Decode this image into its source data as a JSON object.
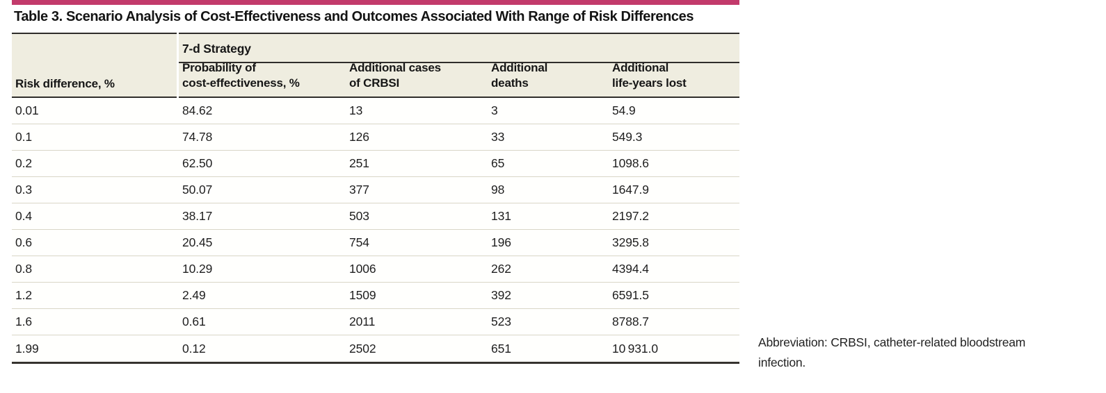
{
  "accent_color": "#c23a6b",
  "title": "Table 3. Scenario Analysis of Cost-Effectiveness and Outcomes Associated With Range of Risk Differences",
  "table": {
    "stub_header": "Risk difference, %",
    "group_header": "7-d Strategy",
    "sub_headers": [
      "Probability of\ncost-effectiveness, %",
      "Additional cases\nof CRBSI",
      "Additional\ndeaths",
      "Additional\nlife-years lost"
    ],
    "columns": [
      "Risk difference, %",
      "Probability of cost-effectiveness, %",
      "Additional cases of CRBSI",
      "Additional deaths",
      "Additional life-years lost"
    ],
    "rows": [
      [
        "0.01",
        "84.62",
        "13",
        "3",
        "54.9"
      ],
      [
        "0.1",
        "74.78",
        "126",
        "33",
        "549.3"
      ],
      [
        "0.2",
        "62.50",
        "251",
        "65",
        "1098.6"
      ],
      [
        "0.3",
        "50.07",
        "377",
        "98",
        "1647.9"
      ],
      [
        "0.4",
        "38.17",
        "503",
        "131",
        "2197.2"
      ],
      [
        "0.6",
        "20.45",
        "754",
        "196",
        "3295.8"
      ],
      [
        "0.8",
        "10.29",
        "1006",
        "262",
        "4394.4"
      ],
      [
        "1.2",
        "2.49",
        "1509",
        "392",
        "6591.5"
      ],
      [
        "1.6",
        "0.61",
        "2011",
        "523",
        "8788.7"
      ],
      [
        "1.99",
        "0.12",
        "2502",
        "651",
        "10 931.0"
      ]
    ]
  },
  "note": "Abbreviation: CRBSI, catheter-related bloodstream infection."
}
